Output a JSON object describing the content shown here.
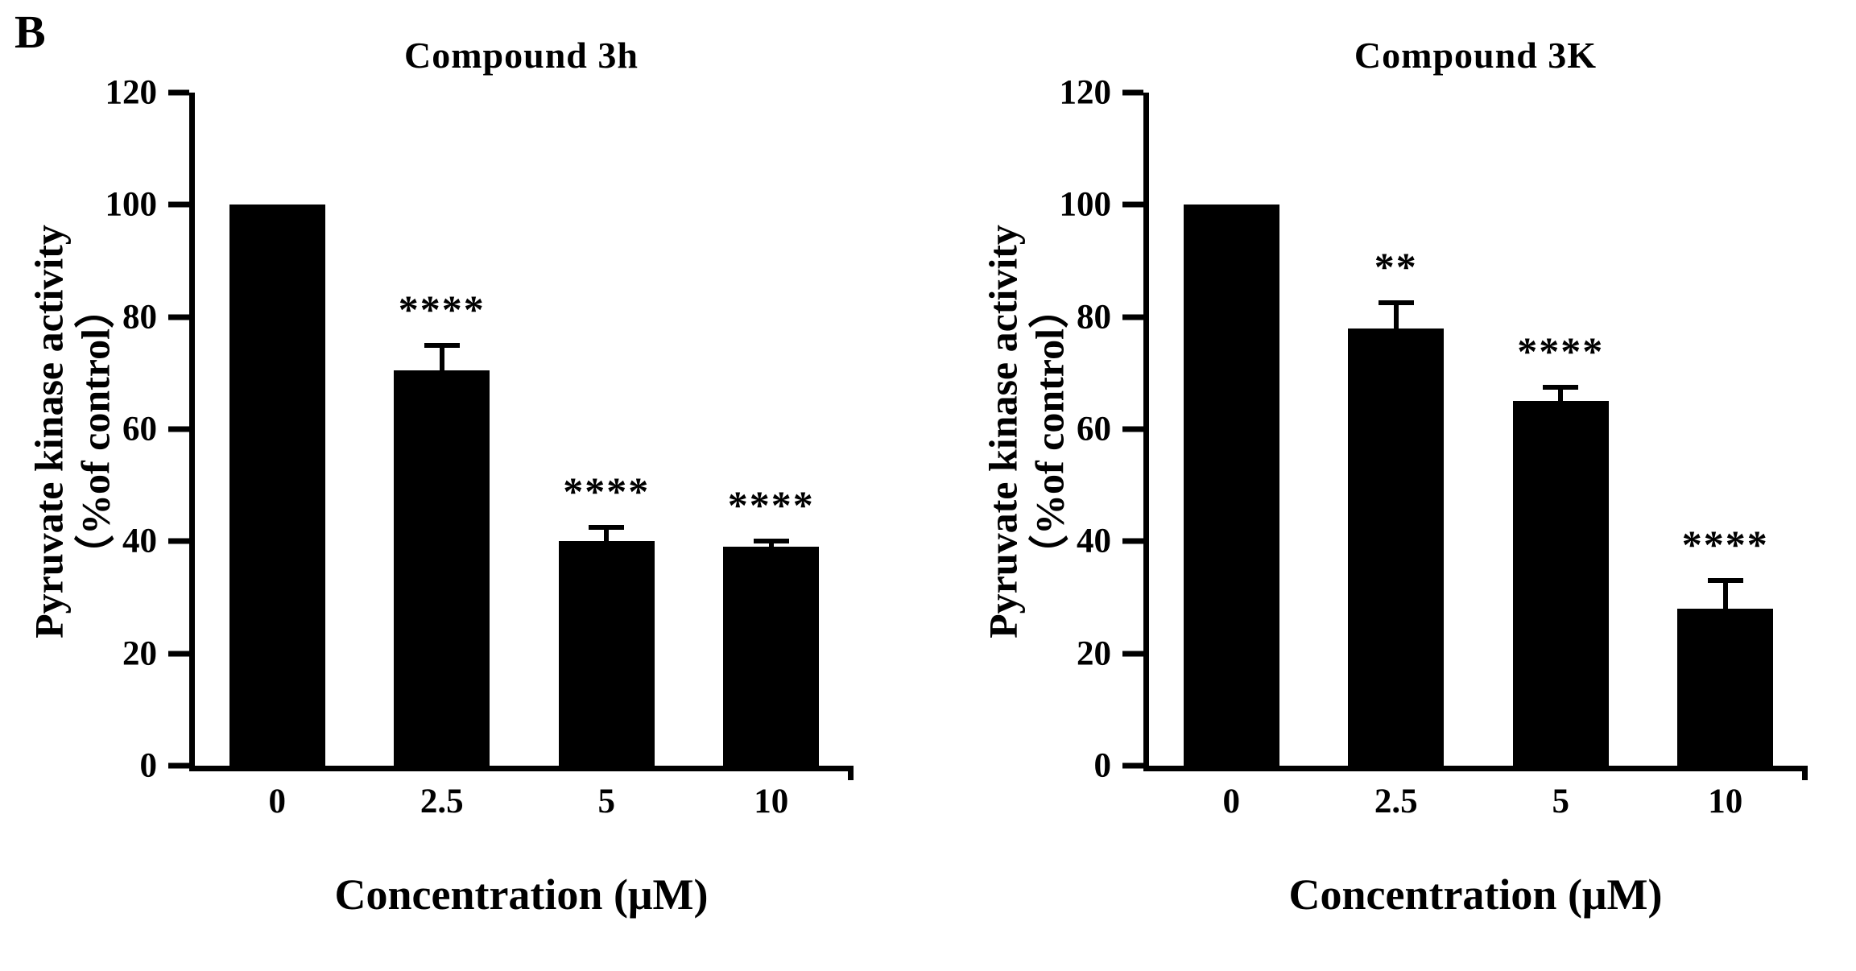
{
  "figure": {
    "panel_label": "B",
    "background": "#ffffff",
    "text_color": "#000000"
  },
  "chart_data": [
    {
      "type": "bar",
      "title": "Compound 3h",
      "ylabel_lines": [
        "Pyruvate kinase activity",
        "（%of control）"
      ],
      "xlabel": "Concentration (μM)",
      "categories": [
        "0",
        "2.5",
        "5",
        "10"
      ],
      "values": [
        100,
        70.5,
        40,
        39
      ],
      "errors": [
        0,
        4.5,
        2.5,
        1
      ],
      "significance": [
        "",
        "****",
        "****",
        "****"
      ],
      "ylim": [
        0,
        120
      ],
      "yticks": [
        0,
        20,
        40,
        60,
        80,
        100,
        120
      ],
      "bar_color": "#000000",
      "grid": false,
      "legend": false
    },
    {
      "type": "bar",
      "title": "Compound 3K",
      "ylabel_lines": [
        "Pyruvate kinase activity",
        "（%of control）"
      ],
      "xlabel": "Concentration (μM)",
      "categories": [
        "0",
        "2.5",
        "5",
        "10"
      ],
      "values": [
        100,
        78,
        65,
        28
      ],
      "errors": [
        0,
        4.5,
        2.5,
        5
      ],
      "significance": [
        "",
        "**",
        "****",
        "****"
      ],
      "ylim": [
        0,
        120
      ],
      "yticks": [
        0,
        20,
        40,
        60,
        80,
        100,
        120
      ],
      "bar_color": "#000000",
      "grid": false,
      "legend": false
    }
  ]
}
